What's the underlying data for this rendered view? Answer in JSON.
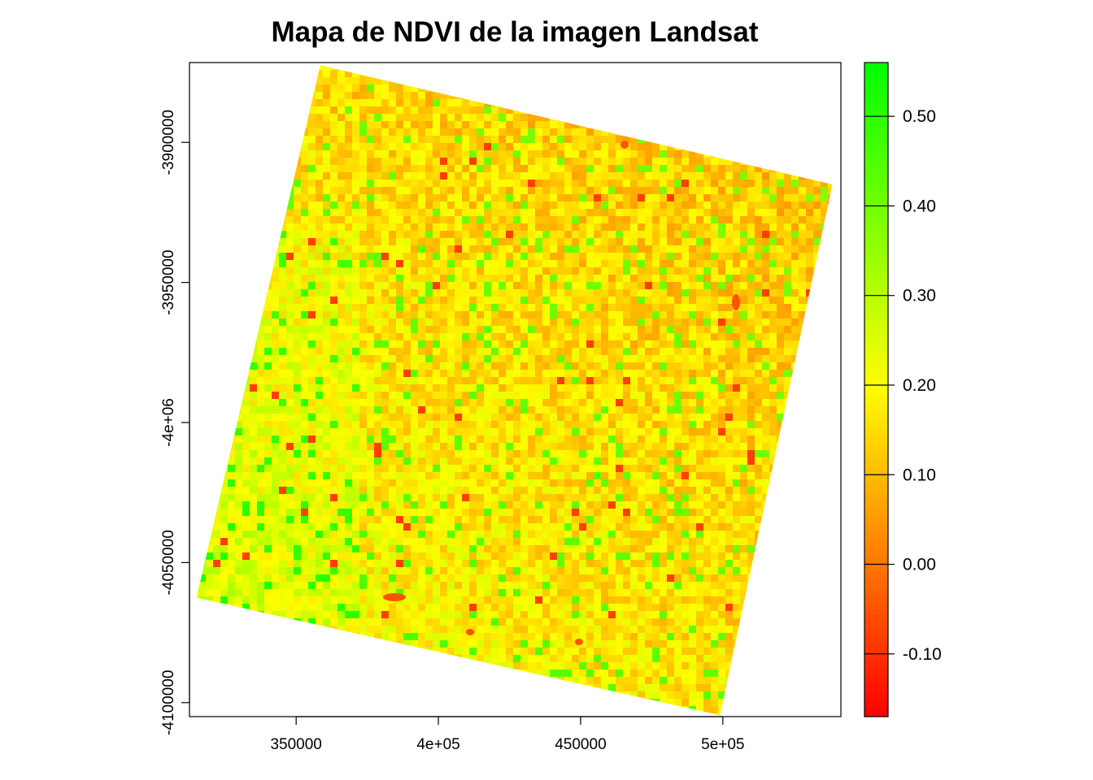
{
  "chart_data": {
    "type": "heatmap",
    "title": "Mapa de NDVI de la imagen Landsat",
    "xlabel": "",
    "ylabel": "",
    "x_ticks": [
      {
        "value": 350000,
        "label": "350000"
      },
      {
        "value": 400000,
        "label": "4e+05"
      },
      {
        "value": 450000,
        "label": "450000"
      },
      {
        "value": 500000,
        "label": "5e+05"
      }
    ],
    "y_ticks": [
      {
        "value": -3900000,
        "label": "-3900000"
      },
      {
        "value": -3950000,
        "label": "-3950000"
      },
      {
        "value": -4000000,
        "label": "-4e+06"
      },
      {
        "value": -4050000,
        "label": "-4050000"
      },
      {
        "value": -4100000,
        "label": "-4100000"
      }
    ],
    "xlim": [
      312500,
      541500
    ],
    "ylim": [
      -4105000,
      -3871500
    ],
    "scene_corners": [
      {
        "x": 358500,
        "y": -3872500
      },
      {
        "x": 538500,
        "y": -3915000
      },
      {
        "x": 499000,
        "y": -4104500
      },
      {
        "x": 315000,
        "y": -4062500
      }
    ],
    "value_range": [
      -0.17,
      0.56
    ],
    "colorbar": {
      "ticks": [
        {
          "value": 0.5,
          "label": "0.50"
        },
        {
          "value": 0.4,
          "label": "0.40"
        },
        {
          "value": 0.3,
          "label": "0.30"
        },
        {
          "value": 0.2,
          "label": "0.20"
        },
        {
          "value": 0.1,
          "label": "0.10"
        },
        {
          "value": 0.0,
          "label": "0.00"
        },
        {
          "value": -0.1,
          "label": "-0.10"
        }
      ],
      "colors": [
        {
          "value": -0.17,
          "color": "#ff0000"
        },
        {
          "value": 0.05,
          "color": "#ff9900"
        },
        {
          "value": 0.2,
          "color": "#ffff00"
        },
        {
          "value": 0.56,
          "color": "#00ff00"
        }
      ]
    },
    "grid": false,
    "legend_position": "right"
  }
}
